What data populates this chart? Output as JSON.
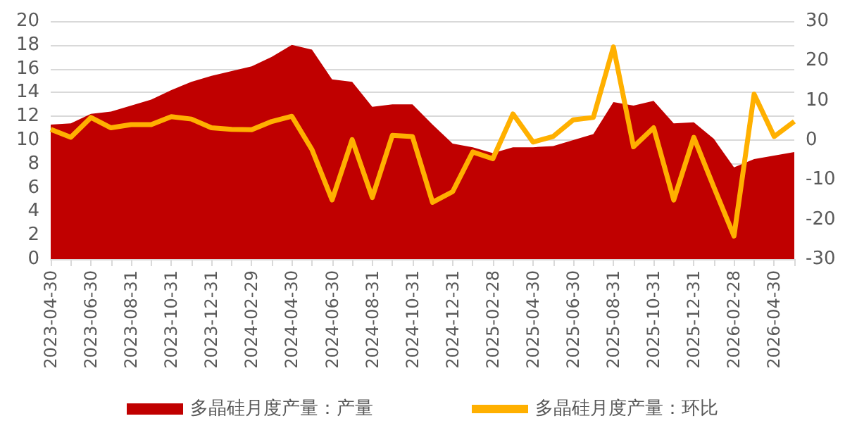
{
  "chart_data": {
    "type": "area",
    "categories": [
      "2023-04-30",
      null,
      "2023-06-30",
      null,
      "2023-08-31",
      null,
      "2023-10-31",
      null,
      "2023-12-31",
      null,
      "2024-02-29",
      null,
      "2024-04-30",
      null,
      "2024-06-30",
      null,
      "2024-08-31",
      null,
      "2024-10-31",
      null,
      "2024-12-31",
      null,
      "2025-02-28",
      null,
      "2025-04-30",
      null,
      "2025-06-30",
      null,
      "2025-08-31",
      null,
      "2025-10-31",
      null,
      "2025-12-31",
      null,
      "2026-02-28",
      null,
      "2026-04-30",
      null
    ],
    "series": [
      {
        "name": "多晶硅月度产量：产量",
        "color": "#c00000",
        "values": [
          11.3,
          11.4,
          12.2,
          12.4,
          12.9,
          13.4,
          14.2,
          14.9,
          15.4,
          15.8,
          16.2,
          17.0,
          18.0,
          17.6,
          15.1,
          14.9,
          12.8,
          13.0,
          13.0,
          11.3,
          9.7,
          9.4,
          8.9,
          9.4,
          9.4,
          9.5,
          10.0,
          10.5,
          13.2,
          12.9,
          13.3,
          11.4,
          11.5,
          10.1,
          7.7,
          8.4,
          8.7,
          9.0
        ]
      },
      {
        "name": "多晶硅月度产量：环比",
        "type": "line",
        "axis": "y2",
        "color": "#ffb000",
        "values": [
          2.7,
          0.7,
          5.7,
          3.1,
          3.9,
          3.9,
          5.9,
          5.3,
          3.1,
          2.7,
          2.6,
          4.7,
          6.0,
          -2.4,
          -15.1,
          0.1,
          -14.5,
          1.2,
          0.9,
          -15.7,
          -13,
          -3,
          -4.7,
          6.6,
          -0.5,
          0.9,
          5.1,
          5.7,
          23.5,
          -1.7,
          3.1,
          -15.1,
          0.7,
          -11.9,
          -24.2,
          11.6,
          0.9,
          4.7
        ]
      }
    ],
    "ylim": [
      0,
      20
    ],
    "yticks": [
      0,
      2,
      4,
      6,
      8,
      10,
      12,
      14,
      16,
      18,
      20
    ],
    "y2lim": [
      -30,
      30
    ],
    "y2ticks": [
      -30,
      -20,
      -10,
      0,
      10,
      20,
      30
    ],
    "grid": "y",
    "legend": "bottom",
    "marker": "none"
  }
}
